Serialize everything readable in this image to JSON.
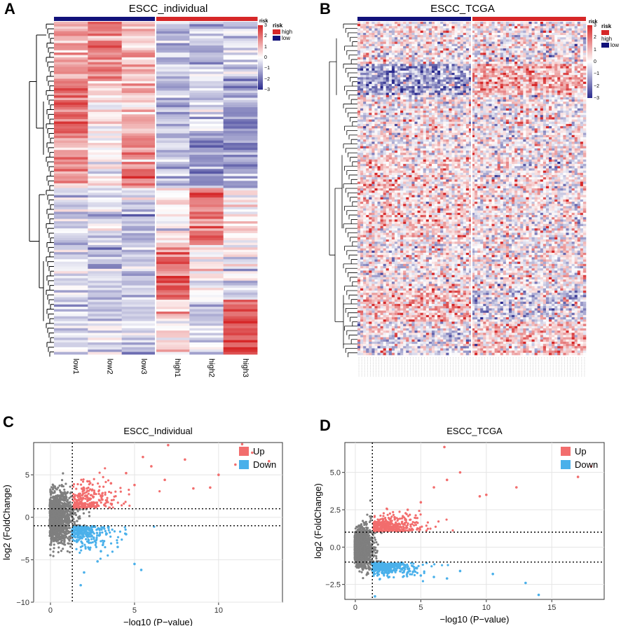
{
  "panels": {
    "a": {
      "letter": "A",
      "title": "ESCC_individual",
      "legend_title": "risk",
      "high": "high",
      "low": "low",
      "cb_ticks": [
        "3",
        "2",
        "1",
        "0",
        "−1",
        "−2",
        "−3"
      ]
    },
    "b": {
      "letter": "B",
      "title": "ESCC_TCGA",
      "legend_title": "risk",
      "high": "high",
      "low": "low",
      "cb_ticks": [
        "3",
        "2",
        "1",
        "0",
        "−1",
        "−2",
        "−3"
      ]
    },
    "c": {
      "letter": "C"
    },
    "d": {
      "letter": "D"
    }
  },
  "colors": {
    "high": "#d62728",
    "low": "#12127a",
    "hm_high": "#d93b3b",
    "hm_low": "#3a3fa3",
    "up": "#f26d6d",
    "down": "#4ab0ea",
    "ns": "#7f7f7f",
    "grid": "#e5e5e5"
  },
  "chart_data": [
    {
      "type": "heatmap",
      "title": "ESCC_individual",
      "columns": [
        "low1",
        "low2",
        "low3",
        "high1",
        "high2",
        "high3"
      ],
      "groups": [
        "low",
        "low",
        "low",
        "high",
        "high",
        "high"
      ],
      "color_scale": [
        -3,
        3
      ],
      "blocks": [
        {
          "rows": "top",
          "pattern": [
            1.2,
            1.8,
            1.0,
            -1.0,
            -0.8,
            -0.6
          ]
        },
        {
          "rows": "upper-mid",
          "pattern": [
            2.0,
            0.3,
            0.8,
            -1.0,
            -0.6,
            -1.5
          ]
        },
        {
          "rows": "mid",
          "pattern": [
            1.4,
            0.2,
            1.8,
            -0.7,
            -1.6,
            -1.4
          ]
        },
        {
          "rows": "lower-mid",
          "pattern": [
            -0.6,
            -0.6,
            -0.8,
            0.4,
            1.8,
            0.2
          ]
        },
        {
          "rows": "lower",
          "pattern": [
            -0.5,
            -0.8,
            -0.8,
            2.0,
            0.2,
            -0.4
          ]
        },
        {
          "rows": "bottom",
          "pattern": [
            -0.7,
            -0.6,
            -0.6,
            0.3,
            -0.5,
            2.2
          ]
        }
      ]
    },
    {
      "type": "heatmap",
      "title": "ESCC_TCGA",
      "groups": {
        "low": "left",
        "high": "right"
      },
      "color_scale": [
        -3,
        3
      ]
    },
    {
      "type": "scatter",
      "title": "ESCC_Individual",
      "xlabel": "−log10 (P−value)",
      "ylabel": "log2 (FoldChange)",
      "xlim": [
        -1,
        13.8
      ],
      "ylim": [
        -10,
        8.8
      ],
      "xticks": [
        0,
        5,
        10
      ],
      "yticks": [
        -10,
        -5,
        0,
        5
      ],
      "ytick_labels": [
        "−10",
        "−5",
        "0",
        "5"
      ],
      "xticks_labels": [
        "0",
        "5",
        "10"
      ],
      "thresholds": {
        "x": 1.3,
        "y": [
          1,
          -1
        ]
      },
      "legend": [
        "Up",
        "Down"
      ],
      "series": [
        {
          "name": "Up",
          "points": [
            [
              1.6,
              2.0
            ],
            [
              2.2,
              3.1
            ],
            [
              3.0,
              2.5
            ],
            [
              3.6,
              4.0
            ],
            [
              4.5,
              5.2
            ],
            [
              5.0,
              3.8
            ],
            [
              6.0,
              6.0
            ],
            [
              7.0,
              8.5
            ],
            [
              6.8,
              4.4
            ],
            [
              8.5,
              3.4
            ],
            [
              9.5,
              3.5
            ],
            [
              10.0,
              5.0
            ],
            [
              11.0,
              6.2
            ],
            [
              11.4,
              8.6
            ],
            [
              12.0,
              7.6
            ],
            [
              13.0,
              6.6
            ],
            [
              5.5,
              7.1
            ],
            [
              8.0,
              6.8
            ]
          ]
        },
        {
          "name": "Down",
          "points": [
            [
              1.6,
              -2.0
            ],
            [
              2.3,
              -3.0
            ],
            [
              3.0,
              -4.0
            ],
            [
              2.0,
              -6.5
            ],
            [
              2.8,
              -5.2
            ],
            [
              4.0,
              -3.5
            ],
            [
              5.0,
              -5.5
            ],
            [
              5.4,
              -6.2
            ],
            [
              4.5,
              -2.0
            ],
            [
              1.8,
              -8.0
            ]
          ]
        }
      ]
    },
    {
      "type": "scatter",
      "title": "ESCC_TCGA",
      "xlabel": "−log10 (P−value)",
      "ylabel": "log2 (FoldChange)",
      "xlim": [
        -0.8,
        19.0
      ],
      "ylim": [
        -3.5,
        7.0
      ],
      "xticks": [
        0,
        5,
        10,
        15
      ],
      "xticks_labels": [
        "0",
        "5",
        "10",
        "15"
      ],
      "yticks": [
        -2.5,
        0.0,
        2.5,
        5.0
      ],
      "ytick_labels": [
        "−2.5",
        "0.0",
        "2.5",
        "5.0"
      ],
      "thresholds": {
        "x": 1.3,
        "y": [
          1,
          -1
        ]
      },
      "legend": [
        "Up",
        "Down"
      ],
      "series": [
        {
          "name": "Up",
          "points": [
            [
              2.0,
              1.5
            ],
            [
              3.0,
              2.0
            ],
            [
              4.0,
              2.5
            ],
            [
              5.0,
              3.0
            ],
            [
              6.0,
              4.0
            ],
            [
              7.0,
              4.5
            ],
            [
              8.0,
              5.0
            ],
            [
              9.5,
              3.4
            ],
            [
              10.0,
              3.5
            ],
            [
              12.3,
              4.0
            ],
            [
              17.0,
              4.7
            ],
            [
              18.0,
              5.4
            ],
            [
              6.8,
              6.7
            ]
          ]
        },
        {
          "name": "Down",
          "points": [
            [
              2.0,
              -1.3
            ],
            [
              3.0,
              -1.5
            ],
            [
              4.0,
              -1.7
            ],
            [
              5.0,
              -1.9
            ],
            [
              6.0,
              -2.0
            ],
            [
              7.0,
              -2.1
            ],
            [
              8.0,
              -1.6
            ],
            [
              10.5,
              -1.8
            ],
            [
              13.0,
              -2.4
            ],
            [
              14.0,
              -3.2
            ],
            [
              1.5,
              -3.3
            ]
          ]
        }
      ]
    }
  ],
  "labels": {
    "c_title": "ESCC_Individual",
    "d_title": "ESCC_TCGA",
    "xlabel": "−log10 (P−value)",
    "ylabel": "log2 (FoldChange)",
    "up": "Up",
    "down": "Down"
  }
}
